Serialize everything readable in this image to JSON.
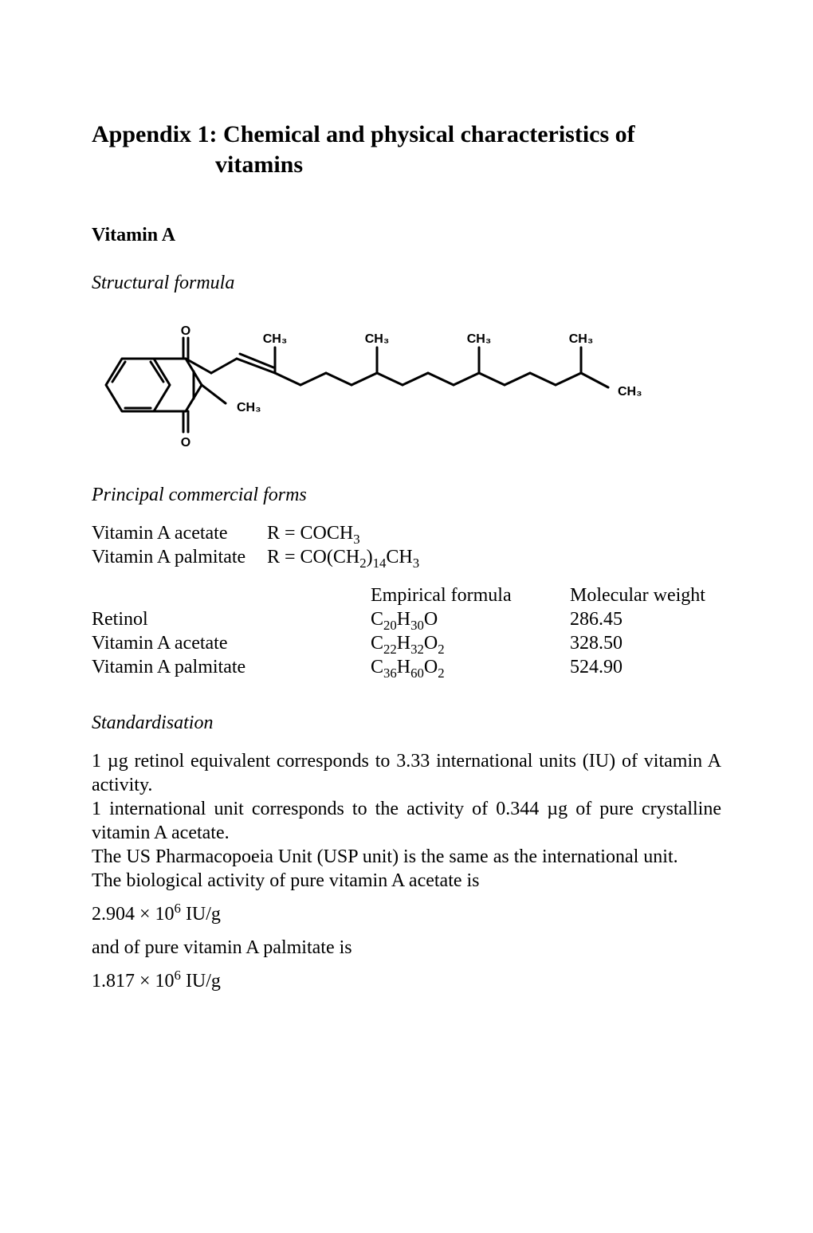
{
  "title_line1": "Appendix 1: Chemical and physical characteristics of",
  "title_line2": "vitamins",
  "vitamin_heading": "Vitamin A",
  "structural_formula_label": "Structural formula",
  "chem_labels": {
    "O_top": "O",
    "O_bot": "O",
    "CH3_ring": "CH₃",
    "CH3_1": "CH₃",
    "CH3_2": "CH₃",
    "CH3_3": "CH₃",
    "CH3_4": "CH₃",
    "CH3_end": "CH₃"
  },
  "chem_style": {
    "stroke": "#000000",
    "stroke_width": 3,
    "label_fontsize": 16,
    "label_fontweight": "bold",
    "label_family": "Arial, Helvetica, sans-serif"
  },
  "principal_forms_label": "Principal commercial forms",
  "forms": [
    {
      "name": "Vitamin A acetate",
      "r": "R = COCH₃"
    },
    {
      "name": "Vitamin A palmitate",
      "r": "R = CO(CH₂)₁₄CH₃"
    }
  ],
  "table_headers": {
    "empirical": "Empirical formula",
    "mw": "Molecular weight"
  },
  "table_rows": [
    {
      "name": "Retinol",
      "formula": "C₂₀H₃₀O",
      "mw": "286.45"
    },
    {
      "name": "Vitamin A acetate",
      "formula": "C₂₂H₃₂O₂",
      "mw": "328.50"
    },
    {
      "name": "Vitamin A palmitate",
      "formula": "C₃₆H₆₀O₂",
      "mw": "524.90"
    }
  ],
  "standardisation_label": "Standardisation",
  "std_paragraphs": [
    "1 µg retinol equivalent corresponds to 3.33 international units (IU) of vitamin A activity.",
    "1 international unit corresponds to the activity of 0.344 µg of pure crystalline vitamin A acetate.",
    "The US Pharmacopoeia Unit (USP unit) is the same as the international unit.",
    "The biological activity of pure vitamin A acetate is"
  ],
  "activity_acetate": "2.904 × 10⁶ IU/g",
  "std_mid": "and of pure vitamin A palmitate is",
  "activity_palmitate": "1.817 × 10⁶ IU/g"
}
